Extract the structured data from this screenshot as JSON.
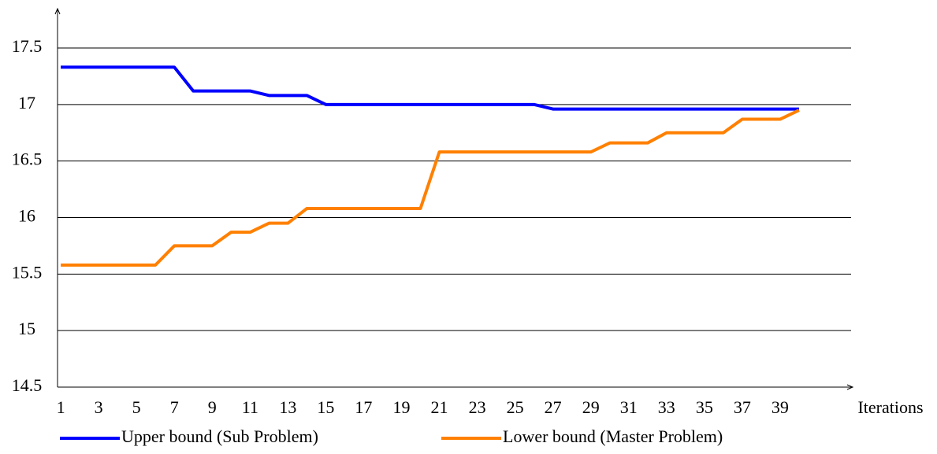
{
  "chart_data": {
    "type": "line",
    "x_label": "Iterations",
    "x": [
      1,
      2,
      3,
      4,
      5,
      6,
      7,
      8,
      9,
      10,
      11,
      12,
      13,
      14,
      15,
      16,
      17,
      18,
      19,
      20,
      21,
      22,
      23,
      24,
      25,
      26,
      27,
      28,
      29,
      30,
      31,
      32,
      33,
      34,
      35,
      36,
      37,
      38,
      39,
      40
    ],
    "series": [
      {
        "name": "Upper bound (Sub Problem)",
        "color": "#0000ff",
        "values": [
          17.33,
          17.33,
          17.33,
          17.33,
          17.33,
          17.33,
          17.33,
          17.12,
          17.12,
          17.12,
          17.12,
          17.08,
          17.08,
          17.08,
          17.0,
          17.0,
          17.0,
          17.0,
          17.0,
          17.0,
          17.0,
          17.0,
          17.0,
          17.0,
          17.0,
          17.0,
          16.96,
          16.96,
          16.96,
          16.96,
          16.96,
          16.96,
          16.96,
          16.96,
          16.96,
          16.96,
          16.96,
          16.96,
          16.96,
          16.96
        ]
      },
      {
        "name": "Lower bound (Master Problem)",
        "color": "#ff8000",
        "values": [
          15.58,
          15.58,
          15.58,
          15.58,
          15.58,
          15.58,
          15.75,
          15.75,
          15.75,
          15.87,
          15.87,
          15.95,
          15.95,
          16.08,
          16.08,
          16.08,
          16.08,
          16.08,
          16.08,
          16.08,
          16.58,
          16.58,
          16.58,
          16.58,
          16.58,
          16.58,
          16.58,
          16.58,
          16.58,
          16.66,
          16.66,
          16.66,
          16.75,
          16.75,
          16.75,
          16.75,
          16.87,
          16.87,
          16.87,
          16.95
        ]
      }
    ],
    "xlim": [
      0.83,
      42.75
    ],
    "xticks": [
      1,
      3,
      5,
      7,
      9,
      11,
      13,
      15,
      17,
      19,
      21,
      23,
      25,
      27,
      29,
      31,
      33,
      35,
      37,
      39
    ],
    "ylim": [
      14.5,
      17.5
    ],
    "yticks": [
      14.5,
      15,
      15.5,
      16,
      16.5,
      17,
      17.5
    ],
    "grid": true,
    "legend": "bottom"
  }
}
